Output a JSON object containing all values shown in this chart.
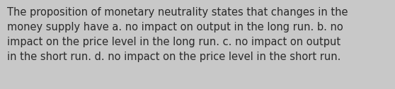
{
  "line1": "The proposition of monetary neutrality states that changes in the",
  "line2": "money supply have a. no impact on output in the long run. b. no",
  "line3": "impact on the price level in the long run. c. no impact on output",
  "line4": "in the short run. d. no impact on the price level in the short run.",
  "background_color": "#c8c8c8",
  "text_color": "#2a2a2a",
  "font_size": 10.5,
  "font_family": "DejaVu Sans"
}
